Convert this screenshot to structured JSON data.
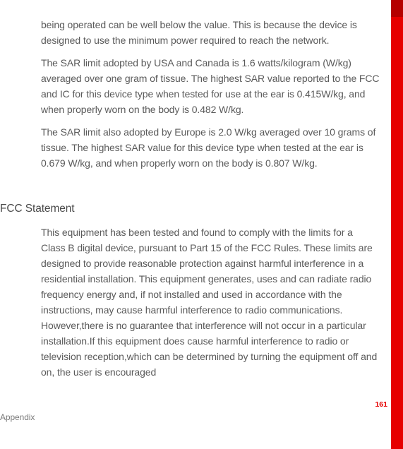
{
  "colors": {
    "text_body": "#5a5a5a",
    "text_heading": "#4a4a4a",
    "text_footer": "#7a7a7a",
    "red_bar": "#e60000",
    "red_bar_dark": "#b50000",
    "page_number": "#e60000",
    "background": "#ffffff"
  },
  "typography": {
    "body_fontsize": 14,
    "body_lineheight": 22,
    "heading_fontsize": 15.5,
    "footer_fontsize": 12,
    "page_number_fontsize": 10.5
  },
  "paragraphs_top": [
    "being operated can be well below the value. This is because the device is designed to use the minimum power required to reach the network.",
    "The SAR limit adopted by USA and Canada is 1.6 watts/kilogram (W/kg) averaged over one gram of tissue. The highest SAR value reported to the FCC and IC for this device type when tested for use at the ear is 0.415W/kg, and when properly worn on the body is 0.482 W/kg.",
    "The SAR limit also adopted by Europe is 2.0 W/kg averaged over 10 grams of tissue. The highest SAR value for this device type when tested at the ear is 0.679 W/kg, and when properly worn on the body is 0.807 W/kg."
  ],
  "section_heading": "FCC Statement",
  "paragraphs_bottom": [
    "This equipment has been tested and found to comply with the limits for a Class B digital device, pursuant to Part 15 of the FCC Rules. These limits are designed to provide reasonable protection against harmful interference in a residential installation. This equipment generates, uses and can radiate radio frequency energy and, if not installed and used in accordance with the instructions, may cause harmful interference to radio communications. However,there is no guarantee that interference will not occur in a particular installation.If this equipment does cause harmful interference to radio or television reception,which can be determined by turning the equipment off and on, the user is encouraged"
  ],
  "page_number": "161",
  "footer_label": "Appendix"
}
